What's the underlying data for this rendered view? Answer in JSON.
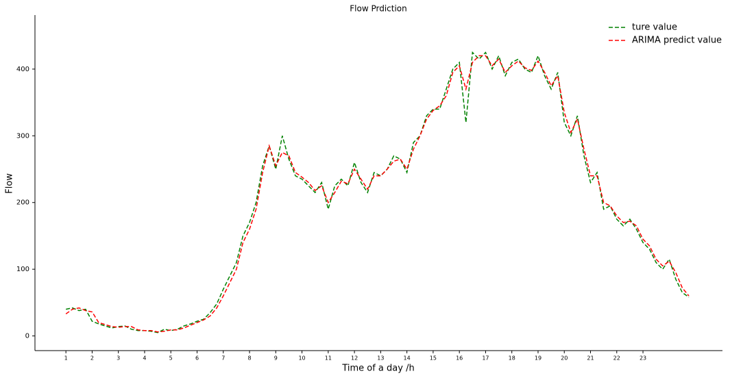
{
  "chart_data": {
    "type": "line",
    "title": "Flow Prdiction",
    "xlabel": "Time of a day /h",
    "ylabel": "Flow",
    "x": [
      1,
      1.25,
      1.5,
      1.75,
      2,
      2.25,
      2.5,
      2.75,
      3,
      3.25,
      3.5,
      3.75,
      4,
      4.25,
      4.5,
      4.75,
      5,
      5.25,
      5.5,
      5.75,
      6,
      6.25,
      6.5,
      6.75,
      7,
      7.25,
      7.5,
      7.75,
      8,
      8.25,
      8.5,
      8.75,
      9,
      9.25,
      9.5,
      9.75,
      10,
      10.25,
      10.5,
      10.75,
      11,
      11.25,
      11.5,
      11.75,
      12,
      12.25,
      12.5,
      12.75,
      13,
      13.25,
      13.5,
      13.75,
      14,
      14.25,
      14.5,
      14.75,
      15,
      15.25,
      15.5,
      15.75,
      16,
      16.25,
      16.5,
      16.75,
      17,
      17.25,
      17.5,
      17.75,
      18,
      18.25,
      18.5,
      18.75,
      19,
      19.25,
      19.5,
      19.75,
      20,
      20.25,
      20.5,
      20.75,
      21,
      21.25,
      21.5,
      21.75,
      22,
      22.25,
      22.5,
      22.75,
      23,
      23.25,
      23.5,
      23.75,
      24,
      24.25,
      24.5,
      24.75
    ],
    "series": [
      {
        "name": "ture value",
        "color": "#008000",
        "values": [
          40,
          42,
          38,
          40,
          22,
          18,
          15,
          12,
          14,
          15,
          10,
          8,
          8,
          7,
          5,
          10,
          8,
          10,
          15,
          18,
          22,
          25,
          35,
          48,
          70,
          90,
          110,
          150,
          170,
          200,
          255,
          285,
          250,
          300,
          265,
          240,
          235,
          225,
          215,
          230,
          190,
          225,
          235,
          225,
          260,
          230,
          215,
          245,
          240,
          250,
          270,
          265,
          245,
          290,
          300,
          330,
          340,
          340,
          370,
          400,
          410,
          320,
          425,
          415,
          425,
          400,
          420,
          390,
          410,
          415,
          400,
          395,
          420,
          390,
          370,
          395,
          320,
          300,
          330,
          270,
          230,
          245,
          190,
          195,
          175,
          165,
          175,
          160,
          140,
          130,
          110,
          100,
          115,
          85,
          65,
          58
        ]
      },
      {
        "name": "ARIMA predict value",
        "color": "#ff0000",
        "values": [
          33,
          40,
          42,
          38,
          36,
          20,
          17,
          14,
          13,
          14,
          14,
          9,
          8,
          8,
          6,
          7,
          9,
          9,
          12,
          16,
          20,
          24,
          30,
          42,
          60,
          80,
          100,
          140,
          160,
          190,
          245,
          285,
          255,
          275,
          270,
          245,
          238,
          230,
          218,
          225,
          200,
          215,
          232,
          228,
          250,
          235,
          220,
          240,
          240,
          250,
          262,
          265,
          250,
          280,
          300,
          325,
          338,
          345,
          360,
          395,
          405,
          370,
          410,
          420,
          420,
          405,
          415,
          395,
          405,
          412,
          402,
          398,
          412,
          395,
          375,
          390,
          335,
          305,
          325,
          280,
          240,
          240,
          200,
          195,
          180,
          170,
          172,
          165,
          145,
          135,
          115,
          105,
          112,
          95,
          72,
          60
        ]
      }
    ],
    "linestyle": "dashed",
    "legend": "upper right",
    "xlim": [
      -0.18,
      26.03
    ],
    "ylim": [
      -22,
      481
    ],
    "xticks": [
      1,
      2,
      3,
      4,
      5,
      6,
      7,
      8,
      9,
      10,
      11,
      12,
      13,
      14,
      15,
      16,
      17,
      18,
      19,
      20,
      21,
      22,
      23
    ],
    "yticks": [
      0,
      100,
      200,
      300,
      400
    ]
  }
}
